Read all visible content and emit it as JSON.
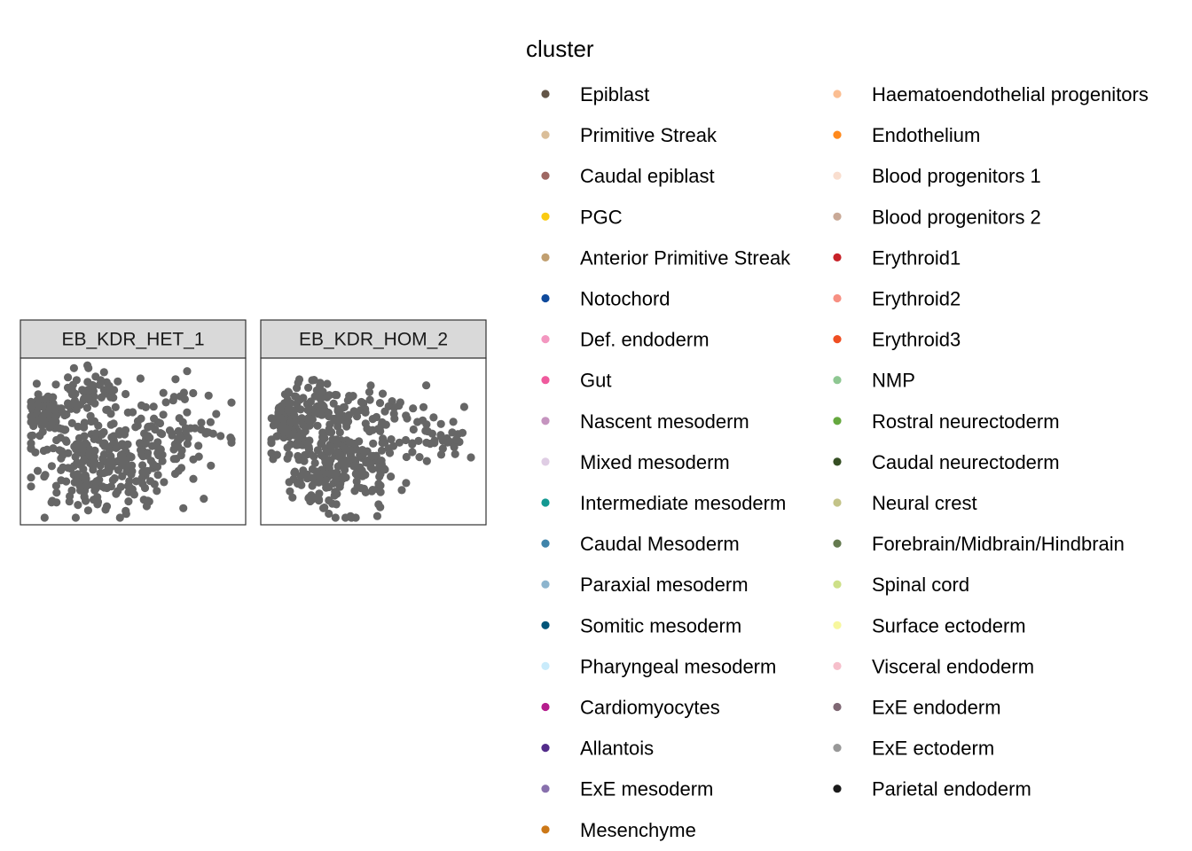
{
  "chart_data": {
    "type": "scatter",
    "point_color": "#666666",
    "panels": [
      {
        "name": "EB_KDR_HET_1",
        "seed": 11
      },
      {
        "name": "EB_KDR_HOM_2",
        "seed": 29
      }
    ],
    "legend": {
      "title": "cluster",
      "entries": [
        {
          "label": "Epiblast",
          "color": "#635547"
        },
        {
          "label": "Primitive Streak",
          "color": "#DABE99"
        },
        {
          "label": "Caudal epiblast",
          "color": "#9E6762"
        },
        {
          "label": "PGC",
          "color": "#FACB12"
        },
        {
          "label": "Anterior Primitive Streak",
          "color": "#C19F70"
        },
        {
          "label": "Notochord",
          "color": "#0F4A9C"
        },
        {
          "label": "Def. endoderm",
          "color": "#F397C0"
        },
        {
          "label": "Gut",
          "color": "#EF5A9D"
        },
        {
          "label": "Nascent mesoderm",
          "color": "#C594BF"
        },
        {
          "label": "Mixed mesoderm",
          "color": "#DFCDE4"
        },
        {
          "label": "Intermediate mesoderm",
          "color": "#139992"
        },
        {
          "label": "Caudal Mesoderm",
          "color": "#3F84AA"
        },
        {
          "label": "Paraxial mesoderm",
          "color": "#8DB5CE"
        },
        {
          "label": "Somitic mesoderm",
          "color": "#005579"
        },
        {
          "label": "Pharyngeal mesoderm",
          "color": "#C9EBFB"
        },
        {
          "label": "Cardiomyocytes",
          "color": "#B51D8D"
        },
        {
          "label": "Allantois",
          "color": "#532C8A"
        },
        {
          "label": "ExE mesoderm",
          "color": "#8870AD"
        },
        {
          "label": "Mesenchyme",
          "color": "#CC7818"
        },
        {
          "label": "Haematoendothelial progenitors",
          "color": "#FBBE92"
        },
        {
          "label": "Endothelium",
          "color": "#FF891C"
        },
        {
          "label": "Blood progenitors 1",
          "color": "#F9DECF"
        },
        {
          "label": "Blood progenitors 2",
          "color": "#C9A997"
        },
        {
          "label": "Erythroid1",
          "color": "#C72228"
        },
        {
          "label": "Erythroid2",
          "color": "#F79083"
        },
        {
          "label": "Erythroid3",
          "color": "#EF4E22"
        },
        {
          "label": "NMP",
          "color": "#8EC792"
        },
        {
          "label": "Rostral neurectoderm",
          "color": "#65A83E"
        },
        {
          "label": "Caudal neurectoderm",
          "color": "#354E23"
        },
        {
          "label": "Neural crest",
          "color": "#C3C388"
        },
        {
          "label": "Forebrain/Midbrain/Hindbrain",
          "color": "#647A4F"
        },
        {
          "label": "Spinal cord",
          "color": "#CDE088"
        },
        {
          "label": "Surface ectoderm",
          "color": "#F7F79E"
        },
        {
          "label": "Visceral endoderm",
          "color": "#F6BFCB"
        },
        {
          "label": "ExE endoderm",
          "color": "#7F6874"
        },
        {
          "label": "ExE ectoderm",
          "color": "#989898"
        },
        {
          "label": "Parietal endoderm",
          "color": "#1A1A1A"
        }
      ]
    }
  }
}
